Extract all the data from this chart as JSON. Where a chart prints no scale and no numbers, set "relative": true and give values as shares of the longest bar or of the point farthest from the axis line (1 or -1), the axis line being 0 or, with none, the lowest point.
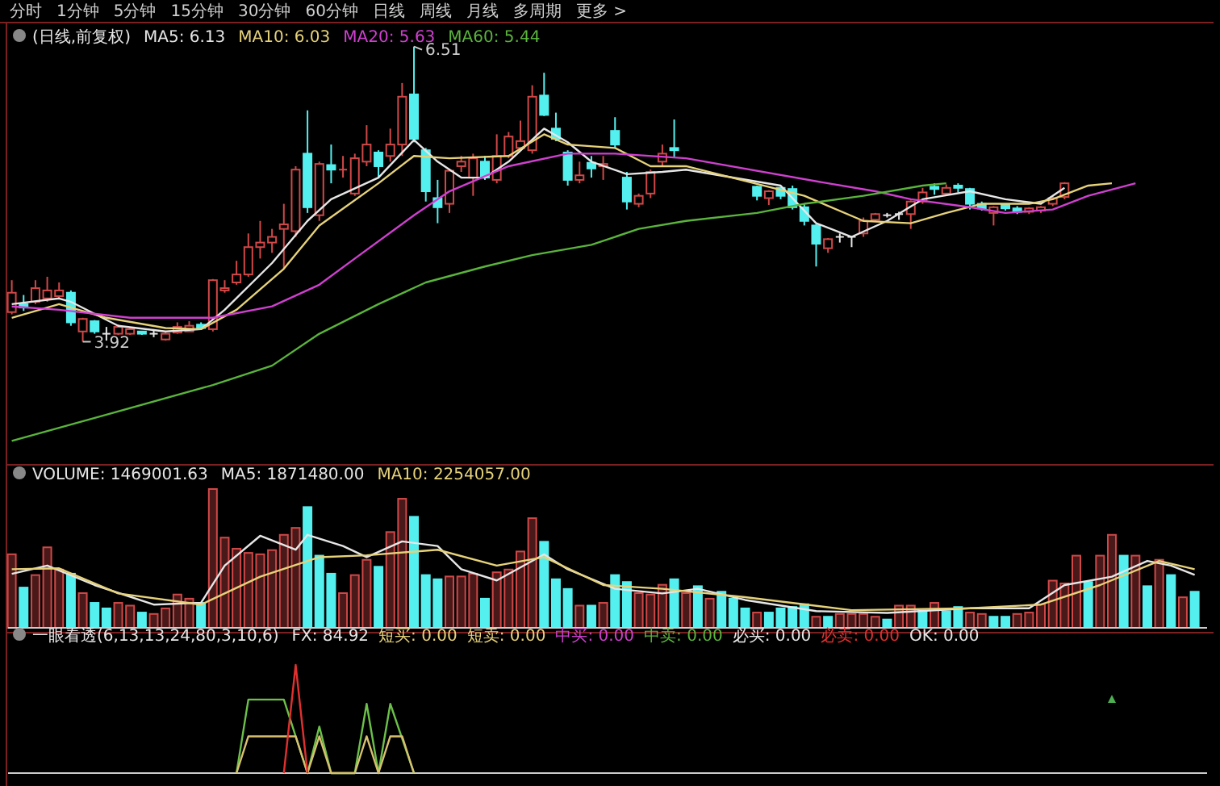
{
  "chart_data": [
    {
      "type": "candlestick",
      "title": "(日线,前复权)",
      "ylim": [
        2.84,
        6.72
      ],
      "annotations": [
        "分时",
        "1分钟",
        "5分钟",
        "15分钟",
        "30分钟",
        "60分钟",
        "日线",
        "周线",
        "月线",
        "多周期",
        "更多 >"
      ],
      "categories": [
        null,
        null,
        null,
        null,
        null,
        null,
        null,
        null,
        null,
        null,
        null,
        null,
        null,
        null,
        null,
        null,
        null,
        null,
        null,
        null,
        null,
        null,
        null,
        null,
        null,
        null,
        null,
        null,
        null,
        null,
        null,
        null,
        null,
        null,
        null,
        null,
        null,
        null,
        null,
        null,
        null,
        null,
        null,
        null,
        null,
        null,
        null,
        null,
        null,
        null,
        null,
        null,
        null,
        null,
        null,
        null,
        null,
        null,
        null,
        null,
        null,
        null,
        null,
        null,
        null,
        null,
        null,
        null,
        null,
        null,
        null,
        null,
        null,
        null,
        null,
        null,
        null,
        null,
        null,
        null,
        null,
        null,
        null,
        null,
        null,
        null,
        null,
        null,
        null,
        null,
        null,
        null,
        null,
        null,
        null,
        null,
        null,
        null,
        null,
        null,
        null
      ],
      "ohlc": [
        [
          4.18,
          4.46,
          4.16,
          4.35
        ],
        [
          4.25,
          4.33,
          4.19,
          4.22
        ],
        [
          4.27,
          4.46,
          4.25,
          4.39
        ],
        [
          4.3,
          4.49,
          4.27,
          4.37
        ],
        [
          4.32,
          4.44,
          4.3,
          4.37
        ],
        [
          4.35,
          4.37,
          4.06,
          4.09
        ],
        [
          4.01,
          4.13,
          3.92,
          4.12
        ],
        [
          4.1,
          4.11,
          3.99,
          4.01
        ],
        [
          3.99,
          4.05,
          3.93,
          3.99
        ],
        [
          3.99,
          4.07,
          3.98,
          4.05
        ],
        [
          3.99,
          4.05,
          3.98,
          4.03
        ],
        [
          4.01,
          4.01,
          3.98,
          3.99
        ],
        [
          3.99,
          4.03,
          3.96,
          3.99
        ],
        [
          3.94,
          4.0,
          3.93,
          3.99
        ],
        [
          4.0,
          4.09,
          3.99,
          4.05
        ],
        [
          4.01,
          4.1,
          4.01,
          4.06
        ],
        [
          4.07,
          4.09,
          4.03,
          4.04
        ],
        [
          4.03,
          4.47,
          4.01,
          4.46
        ],
        [
          4.37,
          4.46,
          4.35,
          4.39
        ],
        [
          4.44,
          4.63,
          4.42,
          4.51
        ],
        [
          4.51,
          4.87,
          4.49,
          4.75
        ],
        [
          4.75,
          4.98,
          4.65,
          4.79
        ],
        [
          4.79,
          4.91,
          4.7,
          4.84
        ],
        [
          4.91,
          5.13,
          4.56,
          4.95
        ],
        [
          4.89,
          5.46,
          4.84,
          5.43
        ],
        [
          5.57,
          5.95,
          5.05,
          5.1
        ],
        [
          5.03,
          5.5,
          4.98,
          5.48
        ],
        [
          5.47,
          5.65,
          5.31,
          5.43
        ],
        [
          5.42,
          5.55,
          5.36,
          5.43
        ],
        [
          5.22,
          5.57,
          5.2,
          5.53
        ],
        [
          5.5,
          5.82,
          5.46,
          5.65
        ],
        [
          5.58,
          5.6,
          5.36,
          5.46
        ],
        [
          5.55,
          5.79,
          5.5,
          5.65
        ],
        [
          5.65,
          6.19,
          5.55,
          6.07
        ],
        [
          6.09,
          6.51,
          5.67,
          5.7
        ],
        [
          5.6,
          5.62,
          5.15,
          5.24
        ],
        [
          5.18,
          5.34,
          4.96,
          5.1
        ],
        [
          5.13,
          5.43,
          5.05,
          5.42
        ],
        [
          5.46,
          5.55,
          5.41,
          5.5
        ],
        [
          5.36,
          5.57,
          5.2,
          5.53
        ],
        [
          5.5,
          5.55,
          5.34,
          5.36
        ],
        [
          5.34,
          5.74,
          5.31,
          5.55
        ],
        [
          5.55,
          5.76,
          5.53,
          5.72
        ],
        [
          5.62,
          5.86,
          5.6,
          5.68
        ],
        [
          5.6,
          6.17,
          5.57,
          6.07
        ],
        [
          6.08,
          6.28,
          5.9,
          5.91
        ],
        [
          5.79,
          5.93,
          5.68,
          5.7
        ],
        [
          5.58,
          5.6,
          5.29,
          5.34
        ],
        [
          5.34,
          5.5,
          5.31,
          5.38
        ],
        [
          5.49,
          5.55,
          5.36,
          5.44
        ],
        [
          5.46,
          5.55,
          5.34,
          5.48
        ],
        [
          5.77,
          5.89,
          5.62,
          5.65
        ],
        [
          5.36,
          5.41,
          5.08,
          5.15
        ],
        [
          5.13,
          5.22,
          5.1,
          5.2
        ],
        [
          5.22,
          5.43,
          5.18,
          5.41
        ],
        [
          5.5,
          5.65,
          5.46,
          5.57
        ],
        [
          5.62,
          5.87,
          5.54,
          5.6
        ],
        null,
        null,
        null,
        null,
        null,
        null,
        [
          5.28,
          5.29,
          5.16,
          5.2
        ],
        [
          5.18,
          5.25,
          5.12,
          5.24
        ],
        [
          5.27,
          5.28,
          5.17,
          5.2
        ],
        [
          5.26,
          5.29,
          5.08,
          5.1
        ],
        [
          5.1,
          5.13,
          4.94,
          4.98
        ],
        [
          4.94,
          4.95,
          4.58,
          4.78
        ],
        [
          4.74,
          4.83,
          4.7,
          4.82
        ],
        [
          4.84,
          4.87,
          4.79,
          4.84
        ],
        [
          4.84,
          4.84,
          4.75,
          4.84
        ],
        [
          4.87,
          5.01,
          4.84,
          4.98
        ],
        [
          4.99,
          5.05,
          4.97,
          5.04
        ],
        [
          5.03,
          5.05,
          5.01,
          5.03
        ],
        [
          5.04,
          5.06,
          4.99,
          5.04
        ],
        [
          5.04,
          5.16,
          4.91,
          5.15
        ],
        [
          5.15,
          5.27,
          5.13,
          5.23
        ],
        [
          5.28,
          5.31,
          5.21,
          5.26
        ],
        [
          5.22,
          5.3,
          5.2,
          5.27
        ],
        [
          5.29,
          5.31,
          5.23,
          5.27
        ],
        [
          5.26,
          5.27,
          5.08,
          5.13
        ],
        [
          5.13,
          5.15,
          5.07,
          5.09
        ],
        [
          5.05,
          5.11,
          4.94,
          5.1
        ],
        [
          5.12,
          5.13,
          5.07,
          5.09
        ],
        [
          5.09,
          5.11,
          5.04,
          5.06
        ],
        [
          5.06,
          5.1,
          5.04,
          5.09
        ],
        [
          5.07,
          5.11,
          5.05,
          5.1
        ],
        [
          5.13,
          5.2,
          5.11,
          5.18
        ],
        [
          5.19,
          5.32,
          5.17,
          5.31
        ],
        null,
        null,
        null,
        null,
        null,
        null,
        null,
        null,
        null,
        null,
        null
      ],
      "value_labels": [
        null,
        null,
        null,
        null,
        null,
        null,
        "3.92",
        null,
        null,
        null,
        null,
        null,
        null,
        null,
        null,
        null,
        null,
        null,
        null,
        null,
        null,
        null,
        null,
        null,
        null,
        null,
        null,
        null,
        null,
        null,
        null,
        null,
        null,
        null,
        "6.51",
        null,
        null,
        null,
        null,
        null,
        null,
        null,
        null,
        null,
        null,
        null,
        null,
        null,
        null,
        null,
        null,
        null,
        null,
        null,
        null,
        null,
        null,
        null,
        null,
        null,
        null,
        null,
        null,
        null,
        null,
        null,
        null,
        null,
        null,
        null,
        null,
        null,
        null,
        null,
        null,
        null,
        null,
        null,
        null,
        null,
        null,
        null,
        null,
        null,
        null,
        null,
        null,
        null,
        null,
        null,
        null,
        null,
        null,
        null,
        null,
        null,
        null,
        null,
        null,
        null,
        null
      ],
      "colors": [
        "#d04848",
        "#54f0f0",
        "#d04848",
        "#d04848",
        "#d04848",
        "#54f0f0",
        "#d04848",
        "#54f0f0",
        "#e6e6e6",
        "#d04848",
        "#d04848",
        "#54f0f0",
        "#e6e6e6",
        "#d04848",
        "#d04848",
        "#d04848",
        "#54f0f0",
        "#d04848",
        "#d04848",
        "#d04848",
        "#d04848",
        "#d04848",
        "#d04848",
        "#d04848",
        "#d04848",
        "#54f0f0",
        "#d04848",
        "#54f0f0",
        "#d04848",
        "#d04848",
        "#d04848",
        "#54f0f0",
        "#d04848",
        "#d04848",
        "#54f0f0",
        "#54f0f0",
        "#54f0f0",
        "#d04848",
        "#d04848",
        "#d04848",
        "#54f0f0",
        "#d04848",
        "#d04848",
        "#d04848",
        "#d04848",
        "#54f0f0",
        "#54f0f0",
        "#54f0f0",
        "#d04848",
        "#54f0f0",
        "#d04848",
        "#54f0f0",
        "#54f0f0",
        "#d04848",
        "#d04848",
        "#d04848",
        "#54f0f0",
        null,
        null,
        null,
        null,
        null,
        null,
        "#54f0f0",
        "#d04848",
        "#54f0f0",
        "#54f0f0",
        "#54f0f0",
        "#54f0f0",
        "#d04848",
        "#e6e6e6",
        "#e6e6e6",
        "#d04848",
        "#d04848",
        "#e6e6e6",
        "#e6e6e6",
        "#d04848",
        "#d04848",
        "#54f0f0",
        "#d04848",
        "#54f0f0",
        "#54f0f0",
        "#54f0f0",
        "#d04848",
        "#54f0f0",
        "#54f0f0",
        "#d04848",
        "#d04848",
        "#d04848",
        "#d04848",
        null,
        null,
        null,
        null,
        null,
        null,
        null,
        null,
        null,
        null,
        null
      ],
      "series": [
        {
          "type": "line",
          "name": "MA5: 6.13",
          "color": "#e6e6e6",
          "values": [
            4.25,
            null,
            null,
            null,
            4.3,
            4.27,
            null,
            null,
            null,
            4.06,
            null,
            null,
            null,
            4.01,
            null,
            null,
            4.03,
            null,
            4.2,
            null,
            null,
            null,
            4.61,
            null,
            null,
            4.98,
            null,
            5.17,
            null,
            null,
            null,
            5.36,
            null,
            null,
            5.69,
            null,
            5.5,
            null,
            5.36,
            null,
            5.36,
            null,
            5.5,
            null,
            null,
            5.79,
            null,
            5.67,
            null,
            5.5,
            null,
            null,
            5.39,
            null,
            null,
            5.41,
            null,
            5.43,
            null,
            null,
            null,
            null,
            null,
            null,
            null,
            5.29,
            null,
            null,
            4.96,
            null,
            null,
            4.84,
            null,
            null,
            4.98,
            null,
            null,
            5.17,
            null,
            null,
            null,
            5.24,
            null,
            null,
            5.17,
            null,
            null,
            5.13,
            null,
            5.27,
            null,
            null,
            null,
            null,
            null,
            null,
            null,
            null,
            null,
            null,
            null
          ]
        },
        {
          "type": "line",
          "name": "MA10: 6.03",
          "color": "#e6d27a",
          "values": [
            4.13,
            null,
            null,
            null,
            4.25,
            null,
            null,
            null,
            4.13,
            null,
            null,
            null,
            null,
            4.04,
            null,
            null,
            4.03,
            null,
            null,
            4.2,
            null,
            null,
            null,
            4.56,
            null,
            null,
            4.94,
            null,
            null,
            null,
            null,
            5.31,
            null,
            null,
            5.55,
            null,
            null,
            5.53,
            null,
            null,
            null,
            null,
            5.55,
            null,
            null,
            5.74,
            null,
            5.65,
            null,
            null,
            null,
            5.62,
            null,
            null,
            5.46,
            null,
            null,
            5.46,
            null,
            null,
            null,
            null,
            null,
            null,
            null,
            null,
            null,
            5.2,
            null,
            null,
            null,
            null,
            4.98,
            null,
            null,
            null,
            4.96,
            null,
            null,
            5.05,
            null,
            null,
            5.13,
            null,
            null,
            null,
            5.13,
            null,
            5.17,
            null,
            null,
            5.29,
            null,
            5.31,
            null,
            null,
            null,
            null,
            null,
            null,
            null
          ]
        },
        {
          "type": "line",
          "name": "MA20: 5.63",
          "color": "#d040d0",
          "values": [
            4.23,
            null,
            null,
            null,
            4.2,
            null,
            null,
            null,
            null,
            null,
            4.13,
            null,
            null,
            null,
            null,
            null,
            null,
            4.13,
            null,
            null,
            null,
            null,
            4.23,
            null,
            null,
            null,
            4.42,
            null,
            null,
            4.65,
            null,
            null,
            null,
            null,
            5.03,
            null,
            null,
            5.24,
            null,
            null,
            null,
            null,
            5.46,
            null,
            null,
            null,
            null,
            5.57,
            null,
            null,
            null,
            5.57,
            null,
            null,
            null,
            null,
            null,
            5.53,
            null,
            null,
            null,
            null,
            null,
            null,
            null,
            null,
            null,
            null,
            null,
            5.31,
            null,
            null,
            null,
            5.24,
            null,
            null,
            5.17,
            null,
            null,
            null,
            null,
            5.1,
            null,
            null,
            5.05,
            null,
            null,
            null,
            5.08,
            null,
            null,
            5.2,
            null,
            null,
            null,
            5.31,
            null,
            null,
            null,
            null,
            null
          ]
        },
        {
          "type": "line",
          "name": "MA60: 5.44",
          "color": "#5ab43c",
          "values": [
            3.05,
            null,
            null,
            null,
            null,
            null,
            null,
            null,
            3.28,
            null,
            null,
            null,
            null,
            null,
            null,
            null,
            null,
            3.54,
            null,
            null,
            null,
            null,
            3.71,
            null,
            null,
            null,
            3.99,
            null,
            null,
            null,
            null,
            4.25,
            null,
            null,
            null,
            4.44,
            null,
            null,
            null,
            null,
            4.58,
            null,
            null,
            null,
            4.68,
            null,
            null,
            null,
            null,
            4.77,
            null,
            null,
            null,
            4.91,
            null,
            null,
            null,
            4.98,
            null,
            null,
            null,
            null,
            null,
            5.05,
            null,
            null,
            null,
            5.13,
            null,
            null,
            null,
            null,
            5.2,
            null,
            null,
            null,
            null,
            5.29,
            null,
            5.31,
            null,
            null,
            null,
            null,
            null,
            null,
            null,
            null,
            null,
            null,
            null,
            null,
            null,
            null,
            null,
            null,
            null,
            null,
            null,
            null,
            null
          ]
        }
      ]
    },
    {
      "type": "bar",
      "relative": true,
      "title": "VOLUME: 1469001.63",
      "categories": [
        null,
        null,
        null,
        null,
        null,
        null,
        null,
        null,
        null,
        null,
        null,
        null,
        null,
        null,
        null,
        null,
        null,
        null,
        null,
        null,
        null,
        null,
        null,
        null,
        null,
        null,
        null,
        null,
        null,
        null,
        null,
        null,
        null,
        null,
        null,
        null,
        null,
        null,
        null,
        null,
        null,
        null,
        null,
        null,
        null,
        null,
        null,
        null,
        null,
        null,
        null,
        null,
        null,
        null,
        null,
        null,
        null,
        null,
        null,
        null,
        null,
        null,
        null,
        null,
        null,
        null,
        null,
        null,
        null,
        null,
        null,
        null,
        null,
        null,
        null,
        null,
        null,
        null,
        null,
        null,
        null,
        null,
        null,
        null,
        null,
        null,
        null,
        null,
        null,
        null,
        null,
        null,
        null,
        null,
        null,
        null,
        null,
        null,
        null,
        null,
        null
      ],
      "values": [
        0.53,
        0.29,
        0.38,
        0.58,
        0.42,
        0.39,
        0.25,
        0.18,
        0.14,
        0.18,
        0.16,
        0.11,
        0.1,
        0.14,
        0.24,
        0.21,
        0.18,
        1,
        0.65,
        0.57,
        0.54,
        0.53,
        0.56,
        0.67,
        0.72,
        0.87,
        0.52,
        0.39,
        0.25,
        0.38,
        0.49,
        0.44,
        0.69,
        0.93,
        0.8,
        0.38,
        0.35,
        0.37,
        0.37,
        0.39,
        0.21,
        0.4,
        0.42,
        0.55,
        0.79,
        0.62,
        0.35,
        0.28,
        0.16,
        0.16,
        0.18,
        0.38,
        0.33,
        0.25,
        0.24,
        0.31,
        0.35,
        0.25,
        0.3,
        0.21,
        0.26,
        0.21,
        0.14,
        0.11,
        0.11,
        0.14,
        0.15,
        0.17,
        0.08,
        0.08,
        0.1,
        0.1,
        0.1,
        0.08,
        0.06,
        0.16,
        0.16,
        0.12,
        0.18,
        0.12,
        0.15,
        0.11,
        0.1,
        0.08,
        0.08,
        0.1,
        0.11,
        0.17,
        0.34,
        0.32,
        0.52,
        0.33,
        0.52,
        0.67,
        0.52,
        0.52,
        0.3,
        0.49,
        0.38,
        0.22,
        0.26
      ],
      "colors": [
        "#d04848",
        "#54f0f0",
        "#d04848",
        "#d04848",
        "#d04848",
        "#54f0f0",
        "#d04848",
        "#54f0f0",
        "#54f0f0",
        "#d04848",
        "#d04848",
        "#54f0f0",
        "#d04848",
        "#d04848",
        "#d04848",
        "#d04848",
        "#54f0f0",
        "#d04848",
        "#d04848",
        "#d04848",
        "#d04848",
        "#d04848",
        "#d04848",
        "#d04848",
        "#d04848",
        "#54f0f0",
        "#54f0f0",
        "#54f0f0",
        "#d04848",
        "#d04848",
        "#d04848",
        "#54f0f0",
        "#d04848",
        "#d04848",
        "#54f0f0",
        "#54f0f0",
        "#54f0f0",
        "#d04848",
        "#d04848",
        "#d04848",
        "#54f0f0",
        "#d04848",
        "#d04848",
        "#d04848",
        "#d04848",
        "#54f0f0",
        "#54f0f0",
        "#54f0f0",
        "#d04848",
        "#54f0f0",
        "#d04848",
        "#54f0f0",
        "#54f0f0",
        "#d04848",
        "#d04848",
        "#d04848",
        "#54f0f0",
        "#d04848",
        "#54f0f0",
        "#d04848",
        "#54f0f0",
        "#54f0f0",
        "#54f0f0",
        "#d04848",
        "#54f0f0",
        "#54f0f0",
        "#54f0f0",
        "#54f0f0",
        "#d04848",
        "#54f0f0",
        "#d04848",
        "#d04848",
        "#d04848",
        "#d04848",
        "#54f0f0",
        "#d04848",
        "#d04848",
        "#54f0f0",
        "#d04848",
        "#54f0f0",
        "#54f0f0",
        "#d04848",
        "#d04848",
        "#54f0f0",
        "#54f0f0",
        "#d04848",
        "#d04848",
        "#d04848",
        "#d04848",
        "#d04848",
        "#d04848",
        "#54f0f0",
        "#d04848",
        "#d04848",
        "#54f0f0",
        "#d04848",
        "#54f0f0",
        "#d04848",
        "#54f0f0",
        "#d04848",
        "#54f0f0"
      ]
    },
    {
      "type": "line",
      "relative": true,
      "categories": [
        null,
        null,
        null,
        null,
        null,
        null,
        null,
        null,
        null,
        null,
        null,
        null,
        null,
        null,
        null,
        null,
        null,
        null,
        null,
        null,
        null,
        null,
        null,
        null,
        null,
        null,
        null,
        null,
        null,
        null,
        null,
        null,
        null,
        null,
        null,
        null,
        null,
        null,
        null,
        null,
        null,
        null,
        null,
        null,
        null,
        null,
        null,
        null,
        null,
        null,
        null,
        null,
        null,
        null,
        null,
        null,
        null,
        null,
        null,
        null,
        null,
        null,
        null,
        null,
        null,
        null,
        null,
        null,
        null,
        null,
        null,
        null,
        null,
        null,
        null,
        null,
        null,
        null,
        null,
        null,
        null,
        null,
        null,
        null,
        null,
        null,
        null,
        null,
        null,
        null,
        null,
        null,
        null,
        null,
        null,
        null,
        null,
        null,
        null,
        null,
        null
      ],
      "series": [
        {
          "name": "MA5: 1871480.00",
          "color": "#e6e6e6",
          "values": [
            0.58,
            null,
            null,
            0.67,
            null,
            null,
            null,
            0.46,
            null,
            null,
            null,
            null,
            0.25,
            null,
            null,
            null,
            0.27,
            null,
            0.67,
            null,
            null,
            0.99,
            null,
            null,
            0.84,
            1,
            null,
            null,
            0.88,
            null,
            0.76,
            null,
            null,
            0.93,
            null,
            null,
            0.88,
            null,
            0.63,
            null,
            null,
            0.51,
            null,
            null,
            null,
            0.79,
            null,
            0.63,
            null,
            null,
            null,
            0.42,
            null,
            null,
            null,
            0.37,
            null,
            null,
            0.42,
            null,
            null,
            null,
            0.3,
            null,
            null,
            null,
            null,
            null,
            0.18,
            null,
            null,
            null,
            null,
            null,
            0.16,
            null,
            null,
            null,
            null,
            null,
            null,
            0.21,
            null,
            null,
            null,
            null,
            0.21,
            null,
            null,
            0.46,
            null,
            null,
            null,
            0.55,
            null,
            null,
            0.72,
            null,
            0.67,
            null,
            0.57
          ]
        },
        {
          "name": "MA10: 2254057.00",
          "color": "#e6d27a",
          "values": [
            0.63,
            null,
            null,
            null,
            0.64,
            null,
            null,
            null,
            null,
            0.37,
            null,
            null,
            null,
            null,
            null,
            null,
            0.25,
            null,
            null,
            null,
            null,
            0.55,
            null,
            null,
            null,
            null,
            0.76,
            null,
            null,
            null,
            0.78,
            null,
            null,
            null,
            null,
            null,
            0.84,
            null,
            null,
            null,
            null,
            0.67,
            null,
            null,
            null,
            0.76,
            null,
            null,
            null,
            null,
            0.46,
            null,
            null,
            null,
            null,
            0.42,
            null,
            null,
            null,
            null,
            null,
            null,
            0.33,
            null,
            null,
            null,
            null,
            null,
            null,
            null,
            null,
            0.19,
            null,
            null,
            null,
            null,
            null,
            null,
            null,
            null,
            null,
            0.21,
            null,
            null,
            null,
            null,
            null,
            0.25,
            null,
            null,
            null,
            null,
            0.46,
            null,
            null,
            null,
            null,
            0.72,
            null,
            null,
            0.63
          ]
        }
      ]
    },
    {
      "type": "line",
      "relative": true,
      "title": "一眼看透(6,13,13,24,80,3,10,6)",
      "annotations": [
        "FX: 84.92",
        "短买: 0.00",
        "短卖: 0.00",
        "中买: 0.00",
        "中卖: 0.00",
        "必买: 0.00",
        "必卖: 0.00",
        "OK: 0.00"
      ],
      "categories": [
        null,
        null,
        null,
        null,
        null,
        null,
        null,
        null,
        null,
        null,
        null,
        null,
        null,
        null,
        null,
        null,
        null,
        null,
        null,
        null,
        null,
        null,
        null,
        null,
        null,
        null,
        null,
        null,
        null,
        null,
        null,
        null,
        null,
        null,
        null,
        null,
        null,
        null,
        null,
        null,
        null,
        null,
        null,
        null,
        null,
        null,
        null,
        null,
        null,
        null,
        null,
        null,
        null,
        null,
        null,
        null,
        null,
        null,
        null,
        null,
        null,
        null,
        null,
        null,
        null,
        null,
        null,
        null,
        null,
        null,
        null,
        null,
        null,
        null,
        null,
        null,
        null,
        null,
        null,
        null,
        null,
        null,
        null,
        null,
        null,
        null,
        null,
        null,
        null,
        null,
        null,
        null,
        null,
        null,
        null,
        null,
        null,
        null,
        null,
        null,
        null
      ],
      "series": [
        {
          "color": "#6cc04a",
          "values": [
            null,
            null,
            null,
            null,
            null,
            null,
            null,
            null,
            null,
            null,
            null,
            null,
            null,
            null,
            null,
            null,
            null,
            null,
            null,
            0,
            0.68,
            null,
            null,
            0.68,
            null,
            0,
            0.43,
            0,
            null,
            0,
            0.64,
            0,
            0.64,
            null,
            0,
            null,
            null,
            null,
            null,
            null,
            null,
            null,
            null,
            null,
            null,
            null,
            null,
            null,
            null,
            null,
            null,
            null,
            null,
            null,
            null,
            null,
            null,
            null,
            null,
            null,
            null,
            null,
            null,
            null,
            null,
            null,
            null,
            null,
            null,
            null,
            null,
            null,
            null,
            null,
            null,
            null,
            null,
            null,
            null,
            null,
            null,
            null,
            null,
            null,
            null,
            null,
            null,
            null,
            null,
            null,
            null,
            null,
            null,
            null,
            null,
            null,
            null,
            null,
            null,
            null,
            null
          ]
        },
        {
          "color": "#d8c070",
          "values": [
            null,
            null,
            null,
            null,
            null,
            null,
            null,
            null,
            null,
            null,
            null,
            null,
            null,
            null,
            null,
            null,
            null,
            null,
            null,
            0,
            0.34,
            null,
            null,
            null,
            0.34,
            0,
            0.34,
            0,
            null,
            0,
            0.34,
            0,
            0.34,
            0.34,
            0,
            null,
            null,
            null,
            null,
            null,
            null,
            null,
            null,
            null,
            null,
            null,
            null,
            null,
            null,
            null,
            null,
            null,
            null,
            null,
            null,
            null,
            null,
            null,
            null,
            null,
            null,
            null,
            null,
            null,
            null,
            null,
            null,
            null,
            null,
            null,
            null,
            null,
            null,
            null,
            null,
            null,
            null,
            null,
            null,
            null,
            null,
            null,
            null,
            null,
            null,
            null,
            null,
            null,
            null,
            null,
            null,
            null,
            null,
            null,
            null,
            null,
            null,
            null,
            null,
            null,
            null
          ]
        },
        {
          "color": "#e03030",
          "values": [
            null,
            null,
            null,
            null,
            null,
            null,
            null,
            null,
            null,
            null,
            null,
            null,
            null,
            null,
            null,
            null,
            null,
            null,
            null,
            null,
            null,
            null,
            null,
            0,
            1,
            0,
            null,
            null,
            null,
            null,
            null,
            null,
            null,
            null,
            null,
            null,
            null,
            null,
            null,
            null,
            null,
            null,
            null,
            null,
            null,
            null,
            null,
            null,
            null,
            null,
            null,
            null,
            null,
            null,
            null,
            null,
            null,
            null,
            null,
            null,
            null,
            null,
            null,
            null,
            null,
            null,
            null,
            null,
            null,
            null,
            null,
            null,
            null,
            null,
            null,
            null,
            null,
            null,
            null,
            null,
            null,
            null,
            null,
            null,
            null,
            null,
            null,
            null,
            null,
            null,
            null,
            null,
            null,
            null,
            null,
            null,
            null,
            null,
            null,
            null,
            null
          ]
        },
        {
          "type": "scatter",
          "marker": "triangle",
          "color": "#4caf50",
          "values": [
            null,
            null,
            null,
            null,
            null,
            null,
            null,
            null,
            null,
            null,
            null,
            null,
            null,
            null,
            null,
            null,
            null,
            null,
            null,
            null,
            null,
            null,
            null,
            null,
            null,
            null,
            null,
            null,
            null,
            null,
            null,
            null,
            null,
            null,
            null,
            null,
            null,
            null,
            null,
            null,
            null,
            null,
            null,
            null,
            null,
            null,
            null,
            null,
            null,
            null,
            null,
            null,
            null,
            null,
            null,
            null,
            null,
            null,
            null,
            null,
            null,
            null,
            null,
            null,
            null,
            null,
            null,
            null,
            null,
            null,
            null,
            null,
            null,
            null,
            null,
            null,
            null,
            null,
            null,
            null,
            null,
            null,
            null,
            null,
            null,
            null,
            null,
            null,
            null,
            null,
            null,
            null,
            null,
            0.68,
            null,
            null,
            null,
            null,
            null,
            null,
            null
          ]
        }
      ]
    }
  ]
}
